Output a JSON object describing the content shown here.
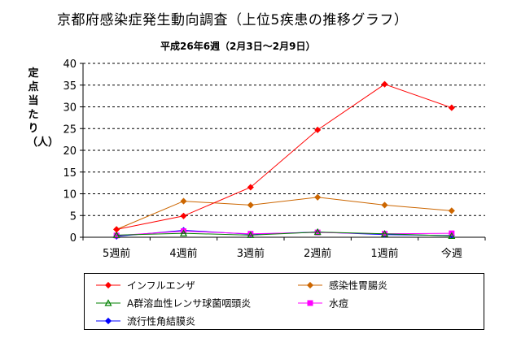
{
  "chart_title": "京都府感染症発生動向調査（上位5疾患の推移グラフ）",
  "chart_subtitle": "平成26年6週（2月3日～2月9日）",
  "y_axis_label": "定点当たり（人）",
  "chart_data": {
    "type": "line",
    "title": "京都府感染症発生動向調査（上位5疾患の推移グラフ）",
    "subtitle": "平成26年6週（2月3日～2月9日）",
    "xlabel": "",
    "ylabel": "定点当たり（人）",
    "categories": [
      "5週前",
      "4週前",
      "3週前",
      "2週前",
      "1週前",
      "今週"
    ],
    "ylim": [
      0,
      40
    ],
    "yticks": [
      0,
      5,
      10,
      15,
      20,
      25,
      30,
      35,
      40
    ],
    "grid": "horizontal dashed",
    "legend_position": "bottom",
    "series": [
      {
        "name": "インフルエンザ",
        "color": "#ff0000",
        "marker": "diamond",
        "values": [
          1.8,
          4.9,
          11.5,
          24.7,
          35.2,
          29.8
        ]
      },
      {
        "name": "感染性胃腸炎",
        "color": "#cc6600",
        "marker": "diamond",
        "values": [
          1.8,
          8.3,
          7.4,
          9.2,
          7.4,
          6.1
        ]
      },
      {
        "name": "A群溶血性レンサ球菌咽頭炎",
        "color": "#008000",
        "marker": "triangle",
        "values": [
          0.5,
          0.9,
          0.5,
          1.2,
          0.8,
          0.3
        ]
      },
      {
        "name": "水痘",
        "color": "#ff00ff",
        "marker": "square",
        "values": [
          0.4,
          1.4,
          0.8,
          1.1,
          0.8,
          0.9
        ]
      },
      {
        "name": "流行性角結膜炎",
        "color": "#0000ff",
        "marker": "diamond",
        "values": [
          0.2,
          1.6,
          0.7,
          1.2,
          0.6,
          0.4
        ]
      }
    ]
  }
}
